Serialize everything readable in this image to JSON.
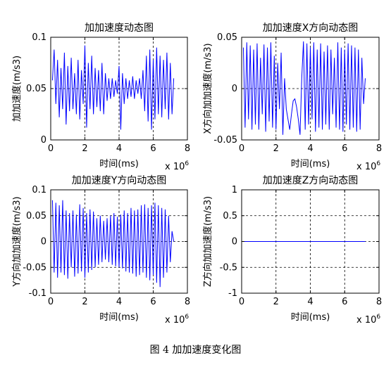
{
  "figure_caption": "图 4 加加速度变化图",
  "chart_data": [
    {
      "type": "line",
      "title": "加加速度动态图",
      "xlabel": "时间(ms)",
      "ylabel": "加加速度(m/s3)",
      "x_exponent_label": "x 10",
      "x_exponent_power": "6",
      "xlim": [
        0,
        8
      ],
      "ylim": [
        0,
        0.1
      ],
      "xticks": [
        0,
        2,
        4,
        6,
        8
      ],
      "yticks": [
        0,
        0.05,
        0.1
      ],
      "xtick_labels": [
        "0",
        "2",
        "4",
        "6",
        "8"
      ],
      "ytick_labels": [
        "0",
        "0.05",
        "0.1"
      ],
      "grid": true,
      "line_color": "#0000ff",
      "series": [
        {
          "x": [
            0.1,
            0.2,
            0.3,
            0.4,
            0.5,
            0.6,
            0.7,
            0.8,
            0.9,
            1.0,
            1.1,
            1.2,
            1.3,
            1.4,
            1.5,
            1.6,
            1.7,
            1.8,
            1.9,
            2.0,
            2.1,
            2.2,
            2.3,
            2.4,
            2.5,
            2.6,
            2.7,
            2.8,
            2.9,
            3.0,
            3.1,
            3.2,
            3.3,
            3.4,
            3.5,
            3.6,
            3.7,
            3.8,
            3.9,
            4.0,
            4.1,
            4.2,
            4.3,
            4.4,
            4.5,
            4.6,
            4.7,
            4.8,
            4.9,
            5.0,
            5.1,
            5.2,
            5.3,
            5.4,
            5.5,
            5.6,
            5.7,
            5.8,
            5.9,
            6.0,
            6.1,
            6.2,
            6.3,
            6.4,
            6.5,
            6.6,
            6.7,
            6.8,
            6.9,
            7.0,
            7.1,
            7.2
          ],
          "y": [
            0.058,
            0.088,
            0.035,
            0.078,
            0.022,
            0.07,
            0.03,
            0.085,
            0.015,
            0.072,
            0.028,
            0.08,
            0.03,
            0.065,
            0.025,
            0.078,
            0.02,
            0.068,
            0.035,
            0.092,
            0.012,
            0.075,
            0.03,
            0.082,
            0.025,
            0.07,
            0.032,
            0.068,
            0.028,
            0.075,
            0.025,
            0.065,
            0.038,
            0.06,
            0.04,
            0.06,
            0.042,
            0.058,
            0.045,
            0.072,
            0.01,
            0.065,
            0.035,
            0.06,
            0.04,
            0.058,
            0.042,
            0.062,
            0.04,
            0.058,
            0.045,
            0.06,
            0.04,
            0.068,
            0.028,
            0.082,
            0.018,
            0.088,
            0.01,
            0.078,
            0.02,
            0.09,
            0.025,
            0.082,
            0.022,
            0.078,
            0.03,
            0.085,
            0.02,
            0.075,
            0.025,
            0.06
          ]
        }
      ]
    },
    {
      "type": "line",
      "title": "加加速度X方向动态图",
      "xlabel": "时间(ms)",
      "ylabel": "X方向加加速度(m/s3)",
      "x_exponent_label": "x 10",
      "x_exponent_power": "6",
      "xlim": [
        0,
        8
      ],
      "ylim": [
        -0.05,
        0.05
      ],
      "xticks": [
        0,
        2,
        4,
        6,
        8
      ],
      "yticks": [
        -0.05,
        0,
        0.05
      ],
      "xtick_labels": [
        "0",
        "2",
        "4",
        "6",
        "8"
      ],
      "ytick_labels": [
        "-0.05",
        "0",
        "0.05"
      ],
      "grid": true,
      "line_color": "#0000ff",
      "series": [
        {
          "x": [
            0.1,
            0.2,
            0.3,
            0.4,
            0.5,
            0.6,
            0.7,
            0.8,
            0.9,
            1.0,
            1.1,
            1.2,
            1.3,
            1.4,
            1.5,
            1.6,
            1.7,
            1.8,
            1.9,
            2.0,
            2.1,
            2.2,
            2.3,
            2.4,
            2.5,
            2.6,
            2.7,
            2.8,
            2.9,
            3.0,
            3.1,
            3.2,
            3.3,
            3.4,
            3.5,
            3.6,
            3.7,
            3.8,
            3.9,
            4.0,
            4.1,
            4.2,
            4.3,
            4.4,
            4.5,
            4.6,
            4.7,
            4.8,
            4.9,
            5.0,
            5.1,
            5.2,
            5.3,
            5.4,
            5.5,
            5.6,
            5.7,
            5.8,
            5.9,
            6.0,
            6.1,
            6.2,
            6.3,
            6.4,
            6.5,
            6.6,
            6.7,
            6.8,
            6.9,
            7.0,
            7.1,
            7.2
          ],
          "y": [
            0.04,
            -0.038,
            0.045,
            -0.03,
            0.042,
            -0.04,
            0.038,
            -0.035,
            0.044,
            -0.04,
            0.03,
            -0.025,
            0.043,
            -0.042,
            0.04,
            -0.032,
            0.045,
            -0.038,
            0.032,
            -0.04,
            0.025,
            -0.02,
            0.035,
            -0.045,
            0.01,
            -0.02,
            -0.03,
            -0.04,
            -0.025,
            -0.012,
            -0.01,
            -0.018,
            -0.03,
            -0.045,
            0.01,
            0.046,
            -0.04,
            0.044,
            -0.035,
            0.04,
            -0.03,
            0.045,
            -0.042,
            0.038,
            -0.038,
            0.044,
            -0.04,
            0.036,
            -0.035,
            0.042,
            -0.04,
            0.038,
            -0.025,
            0.03,
            -0.038,
            0.045,
            -0.04,
            0.04,
            -0.042,
            0.038,
            -0.035,
            0.044,
            -0.04,
            0.042,
            -0.038,
            0.04,
            -0.042,
            0.038,
            -0.04,
            0.03,
            -0.015,
            0.01
          ]
        }
      ]
    },
    {
      "type": "line",
      "title": "加加速度Y方向动态图",
      "xlabel": "时间(ms)",
      "ylabel": "Y方向加加速度(m/s3)",
      "x_exponent_label": "x 10",
      "x_exponent_power": "6",
      "xlim": [
        0,
        8
      ],
      "ylim": [
        -0.1,
        0.1
      ],
      "xticks": [
        0,
        2,
        4,
        6,
        8
      ],
      "yticks": [
        -0.1,
        -0.05,
        0,
        0.05,
        0.1
      ],
      "xtick_labels": [
        "0",
        "2",
        "4",
        "6",
        "8"
      ],
      "ytick_labels": [
        "-0.1",
        "-0.05",
        "0",
        "0.05",
        "0.1"
      ],
      "grid": true,
      "line_color": "#0000ff",
      "series": [
        {
          "x": [
            0.1,
            0.2,
            0.3,
            0.4,
            0.5,
            0.6,
            0.7,
            0.8,
            0.9,
            1.0,
            1.1,
            1.2,
            1.3,
            1.4,
            1.5,
            1.6,
            1.7,
            1.8,
            1.9,
            2.0,
            2.1,
            2.2,
            2.3,
            2.4,
            2.5,
            2.6,
            2.7,
            2.8,
            2.9,
            3.0,
            3.1,
            3.2,
            3.3,
            3.4,
            3.5,
            3.6,
            3.7,
            3.8,
            3.9,
            4.0,
            4.1,
            4.2,
            4.3,
            4.4,
            4.5,
            4.6,
            4.7,
            4.8,
            4.9,
            5.0,
            5.1,
            5.2,
            5.3,
            5.4,
            5.5,
            5.6,
            5.7,
            5.8,
            5.9,
            6.0,
            6.1,
            6.2,
            6.3,
            6.4,
            6.5,
            6.6,
            6.7,
            6.8,
            6.9,
            7.0,
            7.1,
            7.2
          ],
          "y": [
            0.08,
            -0.06,
            0.075,
            -0.07,
            0.07,
            -0.06,
            0.08,
            -0.065,
            0.06,
            -0.072,
            0.055,
            -0.05,
            0.06,
            -0.068,
            0.052,
            -0.062,
            0.072,
            -0.058,
            0.065,
            -0.07,
            0.055,
            -0.06,
            0.062,
            -0.055,
            0.058,
            -0.05,
            0.045,
            -0.045,
            0.05,
            -0.04,
            0.04,
            -0.035,
            0.045,
            -0.04,
            0.05,
            -0.045,
            0.055,
            -0.048,
            0.048,
            -0.05,
            0.052,
            -0.052,
            0.06,
            -0.058,
            0.055,
            -0.06,
            0.065,
            -0.062,
            0.06,
            -0.068,
            0.062,
            -0.065,
            0.07,
            -0.06,
            0.072,
            -0.07,
            0.065,
            -0.075,
            0.07,
            -0.065,
            0.075,
            -0.08,
            0.07,
            -0.088,
            0.065,
            -0.07,
            0.062,
            -0.06,
            0.05,
            -0.04,
            0.02,
            0.0
          ]
        }
      ]
    },
    {
      "type": "line",
      "title": "加加速度Z方向动态图",
      "xlabel": "时间(ms)",
      "ylabel": "Z方向加加速度(m/s3)",
      "x_exponent_label": "x 10",
      "x_exponent_power": "6",
      "xlim": [
        0,
        8
      ],
      "ylim": [
        -1,
        1
      ],
      "xticks": [
        0,
        2,
        4,
        6,
        8
      ],
      "yticks": [
        -1,
        -0.5,
        0,
        0.5,
        1
      ],
      "xtick_labels": [
        "0",
        "2",
        "4",
        "6",
        "8"
      ],
      "ytick_labels": [
        "-1",
        "-0.5",
        "0",
        "0.5",
        "1"
      ],
      "grid": true,
      "line_color": "#0000ff",
      "series": [
        {
          "x": [
            0,
            7.2
          ],
          "y": [
            0,
            0
          ]
        }
      ]
    }
  ]
}
